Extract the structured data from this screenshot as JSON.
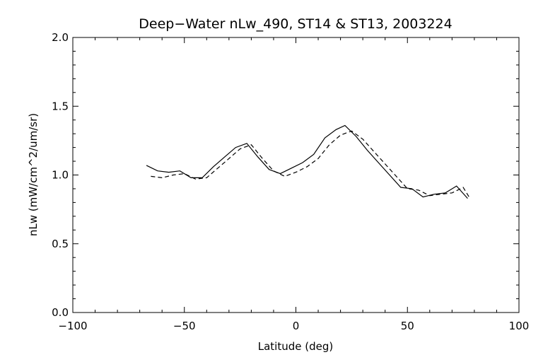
{
  "chart_data": {
    "type": "line",
    "title": "Deep−Water nLw_490, ST14 & ST13, 2003224",
    "xlabel": "Latitude (deg)",
    "ylabel": "nLw (mW/cm^2/um/sr)",
    "xlim": [
      -100,
      100
    ],
    "ylim": [
      0.0,
      2.0
    ],
    "x_ticks": [
      -100,
      -50,
      0,
      50,
      100
    ],
    "x_tick_labels": [
      "−100",
      "−50",
      "0",
      "50",
      "100"
    ],
    "y_ticks": [
      0.0,
      0.5,
      1.0,
      1.5,
      2.0
    ],
    "y_tick_labels": [
      "0.0",
      "0.5",
      "1.0",
      "1.5",
      "2.0"
    ],
    "grid": false,
    "legend": "none",
    "series": [
      {
        "style": "solid",
        "color": "#000000",
        "x": [
          -67,
          -62,
          -57,
          -52,
          -47,
          -42,
          -37,
          -32,
          -27,
          -22,
          -17,
          -12,
          -7,
          -2,
          3,
          8,
          13,
          18,
          22,
          27,
          32,
          37,
          42,
          47,
          52,
          57,
          62,
          67,
          72,
          77
        ],
        "values": [
          1.07,
          1.03,
          1.02,
          1.03,
          0.98,
          0.98,
          1.06,
          1.13,
          1.2,
          1.23,
          1.13,
          1.04,
          1.01,
          1.05,
          1.09,
          1.15,
          1.27,
          1.33,
          1.36,
          1.28,
          1.18,
          1.09,
          1.0,
          0.91,
          0.9,
          0.84,
          0.86,
          0.87,
          0.92,
          0.83
        ]
      },
      {
        "style": "dashed",
        "color": "#000000",
        "x": [
          -65,
          -60,
          -55,
          -50,
          -45,
          -40,
          -35,
          -30,
          -25,
          -20,
          -15,
          -10,
          -5,
          0,
          5,
          10,
          15,
          20,
          25,
          30,
          35,
          40,
          45,
          50,
          55,
          60,
          65,
          70,
          75,
          78
        ],
        "values": [
          0.99,
          0.98,
          1.0,
          1.01,
          0.97,
          0.98,
          1.05,
          1.12,
          1.19,
          1.22,
          1.12,
          1.03,
          0.99,
          1.02,
          1.06,
          1.12,
          1.22,
          1.29,
          1.32,
          1.26,
          1.17,
          1.08,
          0.99,
          0.9,
          0.89,
          0.85,
          0.86,
          0.87,
          0.91,
          0.83
        ]
      }
    ]
  }
}
